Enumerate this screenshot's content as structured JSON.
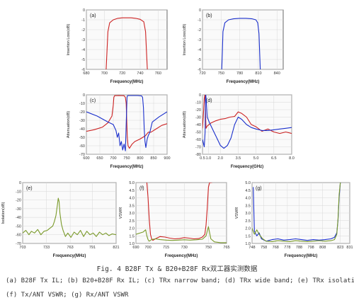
{
  "figure": {
    "caption": "Fig. 4 B28F Tx & B20+B28F Rx双工器实测数据",
    "description_line1": "(a) B28F Tx IL; (b) B20+B28F Rx IL; (c) TRx narrow band; (d) TRx wide band; (e) TRx isolation;",
    "description_line2": "(f) Tx/ANT VSWR; (g) Rx/ANT VSWR"
  },
  "colors": {
    "red": "#cc2222",
    "blue": "#1a2fcc",
    "green": "#7a9a2a"
  },
  "chart_data": [
    {
      "id": "a",
      "panel_label": "(a)",
      "type": "line",
      "xlabel": "Frequency(MHz)",
      "ylabel": "Insertion Loss(dB)",
      "xlim": [
        680,
        770
      ],
      "ylim": [
        -6,
        0
      ],
      "xticks": [
        680,
        700,
        720,
        740,
        760
      ],
      "yticks": [
        0,
        -1,
        -2,
        -3,
        -4,
        -5,
        -6
      ],
      "grid": true,
      "series": [
        {
          "color": "red",
          "x": [
            702,
            703,
            704,
            706,
            710,
            715,
            720,
            725,
            730,
            735,
            740,
            744,
            746,
            747,
            748
          ],
          "y": [
            -6,
            -4.2,
            -2.2,
            -1.3,
            -1.0,
            -0.85,
            -0.8,
            -0.8,
            -0.8,
            -0.85,
            -0.95,
            -1.2,
            -2.2,
            -4.2,
            -6
          ]
        }
      ]
    },
    {
      "id": "b",
      "panel_label": "(b)",
      "type": "line",
      "xlabel": "Frequency(MHz)",
      "ylabel": "Insertion Loss(dB)",
      "xlim": [
        720,
        850
      ],
      "ylim": [
        -6,
        0
      ],
      "xticks": [
        720,
        750,
        780,
        810,
        840
      ],
      "yticks": [
        0,
        -1,
        -2,
        -3,
        -4,
        -5,
        -6
      ],
      "grid": true,
      "series": [
        {
          "color": "blue",
          "x": [
            751,
            752,
            753,
            756,
            762,
            770,
            780,
            790,
            800,
            806,
            809,
            811,
            812,
            813
          ],
          "y": [
            -6,
            -4.2,
            -2.2,
            -1.3,
            -1.0,
            -0.9,
            -0.85,
            -0.85,
            -0.9,
            -1.0,
            -1.3,
            -2.4,
            -4.2,
            -6
          ]
        }
      ]
    },
    {
      "id": "c",
      "panel_label": "(c)",
      "type": "line",
      "xlabel": "Frequency(MHz)",
      "ylabel": "Attenuation(dB)",
      "xlim": [
        600,
        900
      ],
      "ylim": [
        -70,
        0
      ],
      "xticks": [
        600,
        650,
        700,
        750,
        800,
        850,
        900
      ],
      "yticks": [
        0,
        -10,
        -20,
        -30,
        -40,
        -50,
        -60,
        -70
      ],
      "grid": true,
      "series": [
        {
          "color": "red",
          "x": [
            600,
            630,
            660,
            680,
            695,
            700,
            702,
            705,
            720,
            740,
            745,
            748,
            750,
            752,
            755,
            760,
            770,
            780,
            800,
            820,
            830,
            840,
            860,
            880,
            900
          ],
          "y": [
            -43,
            -41,
            -38,
            -33,
            -25,
            -12,
            -3,
            -1,
            -0.8,
            -1,
            -3,
            -10,
            -30,
            -50,
            -60,
            -63,
            -58,
            -55,
            -52,
            -48,
            -44,
            -44,
            -40,
            -36,
            -34
          ]
        }
      ]
    },
    {
      "id": "c",
      "type": "line",
      "series": [
        {
          "color": "blue",
          "x": [
            600,
            640,
            680,
            700,
            710,
            715,
            720,
            725,
            730,
            735,
            740,
            745,
            748,
            751,
            753,
            756,
            770,
            790,
            805,
            809,
            812,
            815,
            818,
            821,
            826,
            830,
            836,
            845,
            870,
            900
          ],
          "y": [
            -20,
            -25,
            -32,
            -35,
            -42,
            -50,
            -45,
            -60,
            -55,
            -65,
            -58,
            -66,
            -35,
            -3,
            -1,
            -0.8,
            -0.8,
            -0.8,
            -1.2,
            -3,
            -15,
            -40,
            -55,
            -62,
            -52,
            -48,
            -44,
            -32,
            -26,
            -20
          ]
        }
      ]
    },
    {
      "id": "d",
      "panel_label": "(d)",
      "type": "line",
      "xlabel": "Frequency(GHz)",
      "ylabel": "Attenuation(dB)",
      "xlim": [
        0.5,
        8.0
      ],
      "ylim": [
        -80,
        0
      ],
      "xticks": [
        0.5,
        1.0,
        2.0,
        3.5,
        5.0,
        6.5,
        8.0
      ],
      "xticklabels": [
        "0.5",
        "1.0",
        "2.0",
        "3.5",
        "5.0",
        "6.5",
        "8.0"
      ],
      "yticks": [
        0,
        -10,
        -20,
        -30,
        -40,
        -50,
        -60,
        -70,
        -80
      ],
      "grid": true,
      "series": [
        {
          "color": "red",
          "x": [
            0.5,
            0.6,
            0.65,
            0.7,
            0.72,
            0.75,
            0.8,
            0.9,
            1.2,
            1.6,
            2.0,
            2.4,
            2.8,
            3.2,
            3.5,
            3.8,
            4.2,
            4.6,
            5.0,
            5.5,
            6.0,
            6.5,
            7.0,
            7.5,
            8.0
          ],
          "y": [
            -45,
            -20,
            -5,
            0,
            -1,
            -20,
            -45,
            -42,
            -38,
            -35,
            -33,
            -32,
            -30,
            -29,
            -23,
            -25,
            -30,
            -40,
            -43,
            -49,
            -46,
            -50,
            -52,
            -50,
            -52
          ]
        },
        {
          "color": "blue",
          "x": [
            0.5,
            0.65,
            0.72,
            0.75,
            0.78,
            0.82,
            0.9,
            1.1,
            1.4,
            1.7,
            2.0,
            2.3,
            2.6,
            2.9,
            3.2,
            3.5,
            3.8,
            4.2,
            4.6,
            5.0,
            5.5,
            6.0,
            6.5,
            7.0,
            7.5,
            8.0
          ],
          "y": [
            -60,
            -70,
            -50,
            -5,
            0,
            -10,
            -30,
            -38,
            -48,
            -58,
            -68,
            -72,
            -68,
            -58,
            -40,
            -30,
            -33,
            -40,
            -44,
            -46,
            -48,
            -48,
            -47,
            -46,
            -45,
            -44
          ]
        }
      ]
    },
    {
      "id": "e",
      "panel_label": "(e)",
      "type": "line",
      "xlabel": "Frequency(MHz)",
      "ylabel": "Isolation(dB)",
      "xlim": [
        703,
        821
      ],
      "ylim": [
        -70,
        0
      ],
      "xticks": [
        703,
        733,
        763,
        791,
        821
      ],
      "yticks": [
        0,
        -10,
        -20,
        -30,
        -40,
        -50,
        -60,
        -70
      ],
      "grid": true,
      "series": [
        {
          "color": "green",
          "x": [
            703,
            707,
            711,
            714,
            718,
            722,
            726,
            730,
            734,
            738,
            741,
            743,
            745,
            747,
            748,
            749,
            750,
            752,
            754,
            757,
            760,
            764,
            768,
            772,
            776,
            780,
            784,
            788,
            792,
            796,
            800,
            804,
            808,
            812,
            816,
            821
          ],
          "y": [
            -58,
            -55,
            -60,
            -56,
            -58,
            -54,
            -60,
            -56,
            -55,
            -52,
            -50,
            -45,
            -38,
            -25,
            -18,
            -22,
            -35,
            -48,
            -55,
            -62,
            -58,
            -63,
            -57,
            -60,
            -55,
            -62,
            -56,
            -60,
            -58,
            -62,
            -57,
            -60,
            -58,
            -61,
            -59,
            -60
          ]
        }
      ]
    },
    {
      "id": "f",
      "panel_label": "(f)",
      "type": "line",
      "xlabel": "Frequency(MHz)",
      "ylabel": "VSWR",
      "xlim": [
        690,
        765
      ],
      "ylim": [
        1.0,
        5.0
      ],
      "xticks": [
        690,
        700,
        715,
        730,
        750,
        765
      ],
      "yticks": [
        1.0,
        1.5,
        2.0,
        2.5,
        3.0,
        3.5,
        4.0,
        4.5,
        5.0
      ],
      "grid": true,
      "series": [
        {
          "color": "red",
          "x": [
            699,
            700,
            701,
            702,
            703,
            704,
            706,
            710,
            714,
            718,
            722,
            726,
            730,
            734,
            738,
            742,
            745,
            747,
            748,
            749,
            750,
            751,
            753
          ],
          "y": [
            5.0,
            4.0,
            2.6,
            1.6,
            1.3,
            1.2,
            1.3,
            1.45,
            1.42,
            1.35,
            1.3,
            1.32,
            1.38,
            1.35,
            1.3,
            1.32,
            1.42,
            1.6,
            2.2,
            3.3,
            4.7,
            5.0,
            5.0
          ]
        },
        {
          "color": "green",
          "x": [
            690,
            696,
            698,
            699,
            700,
            701,
            703,
            706,
            710,
            715,
            720,
            725,
            730,
            735,
            740,
            745,
            748,
            750,
            752,
            755,
            760,
            765
          ],
          "y": [
            1.6,
            1.75,
            1.9,
            1.5,
            1.25,
            1.15,
            1.25,
            1.3,
            1.25,
            1.22,
            1.2,
            1.22,
            1.24,
            1.22,
            1.24,
            1.28,
            1.5,
            2.1,
            1.3,
            1.1,
            1.05,
            1.05
          ]
        }
      ]
    },
    {
      "id": "g",
      "panel_label": "(g)",
      "type": "line",
      "xlabel": "Frequency(MHz)",
      "ylabel": "VSWR",
      "xlim": [
        748,
        831
      ],
      "ylim": [
        1.0,
        5.0
      ],
      "xticks": [
        748,
        758,
        768,
        778,
        788,
        798,
        808,
        823,
        831
      ],
      "yticks": [
        1.0,
        1.5,
        2.0,
        2.5,
        3.0,
        3.5,
        4.0,
        4.5,
        5.0
      ],
      "grid": true,
      "series": [
        {
          "color": "blue",
          "x": [
            749,
            750,
            752,
            754,
            756,
            760,
            765,
            770,
            775,
            780,
            785,
            790,
            795,
            800,
            805,
            810,
            815,
            818,
            820,
            821,
            822,
            823
          ],
          "y": [
            4.7,
            1.8,
            1.5,
            1.7,
            1.3,
            1.15,
            1.25,
            1.3,
            1.22,
            1.25,
            1.3,
            1.25,
            1.2,
            1.25,
            1.22,
            1.25,
            1.3,
            1.4,
            1.7,
            2.5,
            4.0,
            5.0
          ]
        },
        {
          "color": "green",
          "x": [
            748,
            750,
            752,
            754,
            757,
            760,
            765,
            770,
            775,
            780,
            785,
            790,
            795,
            800,
            805,
            810,
            815,
            818,
            820,
            821,
            822,
            823
          ],
          "y": [
            2.0,
            1.6,
            1.9,
            1.6,
            1.3,
            1.15,
            1.12,
            1.18,
            1.15,
            1.12,
            1.18,
            1.15,
            1.12,
            1.15,
            1.18,
            1.15,
            1.18,
            1.25,
            1.6,
            2.6,
            4.2,
            5.0
          ]
        }
      ]
    }
  ]
}
